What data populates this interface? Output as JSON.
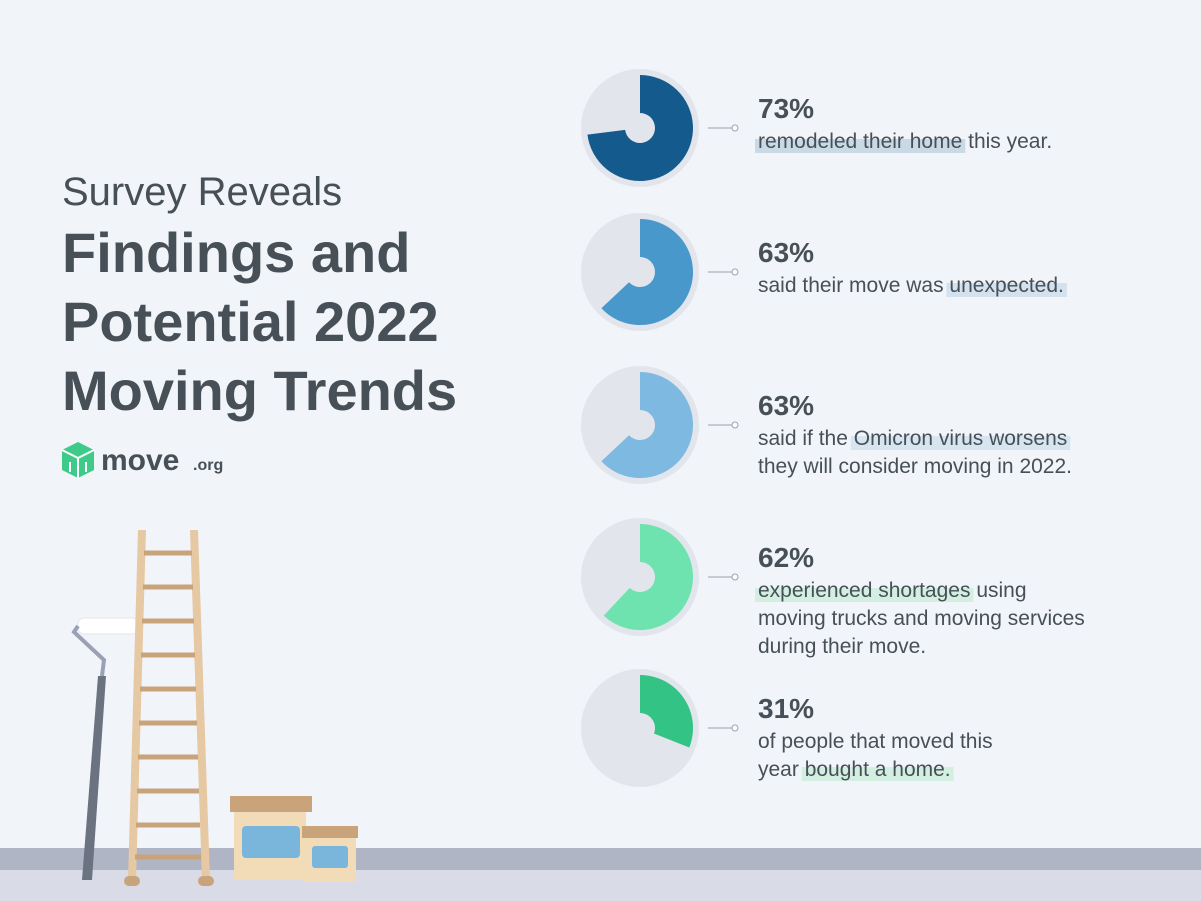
{
  "header": {
    "kicker": "Survey Reveals",
    "title_lines": [
      "Findings and",
      "Potential 2022",
      "Moving Trends"
    ]
  },
  "logo": {
    "name": "move",
    "suffix": ".org"
  },
  "chart_data": [
    {
      "type": "pie",
      "values": [
        73
      ],
      "value_labels": [
        "73%"
      ],
      "color": "#145a8c",
      "highlight_color": "#c9d9e6",
      "caption_lines": [
        [
          {
            "text": "remodeled their home",
            "highlight": true
          },
          {
            "text": " this year.",
            "highlight": false
          }
        ]
      ]
    },
    {
      "type": "pie",
      "values": [
        63
      ],
      "value_labels": [
        "63%"
      ],
      "color": "#4898cc",
      "highlight_color": "#d3e2ee",
      "caption_lines": [
        [
          {
            "text": "said their move was ",
            "highlight": false
          },
          {
            "text": "unexpected.",
            "highlight": true
          }
        ]
      ]
    },
    {
      "type": "pie",
      "values": [
        63
      ],
      "value_labels": [
        "63%"
      ],
      "color": "#7db9e0",
      "highlight_color": "#d6e5f0",
      "caption_lines": [
        [
          {
            "text": "said if the ",
            "highlight": false
          },
          {
            "text": "Omicron virus worsens",
            "highlight": true
          }
        ],
        [
          {
            "text": "they will consider moving in 2022.",
            "highlight": false
          }
        ]
      ]
    },
    {
      "type": "pie",
      "values": [
        62
      ],
      "value_labels": [
        "62%"
      ],
      "color": "#6ee3b0",
      "highlight_color": "#d3efe2",
      "caption_lines": [
        [
          {
            "text": "experienced shortages",
            "highlight": true
          },
          {
            "text": " using",
            "highlight": false
          }
        ],
        [
          {
            "text": "moving trucks and moving services",
            "highlight": false
          }
        ],
        [
          {
            "text": "during their move.",
            "highlight": false
          }
        ]
      ]
    },
    {
      "type": "pie",
      "values": [
        31
      ],
      "value_labels": [
        "31%"
      ],
      "color": "#32c385",
      "highlight_color": "#d3efe2",
      "caption_lines": [
        [
          {
            "text": "of people that moved this",
            "highlight": false
          }
        ],
        [
          {
            "text": "year ",
            "highlight": false
          },
          {
            "text": "bought a home.",
            "highlight": true
          }
        ]
      ]
    }
  ]
}
